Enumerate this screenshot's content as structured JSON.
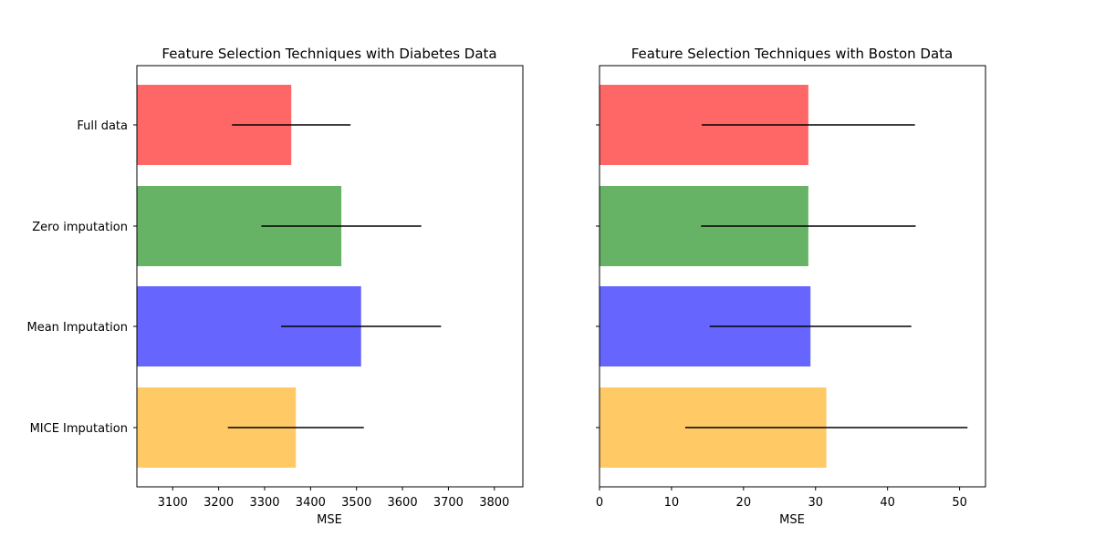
{
  "chart_data": [
    {
      "type": "bar",
      "orientation": "horizontal",
      "title": "Feature Selection Techniques with Diabetes Data",
      "xlabel": "MSE",
      "ylabel": "",
      "categories": [
        "Full data",
        "Zero imputation",
        "Mean Imputation",
        "MICE Imputation"
      ],
      "values": [
        3358,
        3467,
        3510,
        3368
      ],
      "error": [
        129,
        174,
        174,
        148
      ],
      "colors": [
        "#ff0000",
        "#008000",
        "#0000ff",
        "#ffa500"
      ],
      "bar_alpha": 0.6,
      "xlim": [
        3022,
        3862
      ],
      "xticks": [
        3100,
        3200,
        3300,
        3400,
        3500,
        3600,
        3700,
        3800
      ],
      "show_ytick_labels": true,
      "grid": false,
      "legend": "none"
    },
    {
      "type": "bar",
      "orientation": "horizontal",
      "title": "Feature Selection Techniques with Boston Data",
      "xlabel": "MSE",
      "ylabel": "",
      "categories": [
        "Full data",
        "Zero imputation",
        "Mean Imputation",
        "MICE Imputation"
      ],
      "values": [
        29.0,
        29.0,
        29.3,
        31.5
      ],
      "error": [
        14.8,
        14.9,
        14.0,
        19.6
      ],
      "colors": [
        "#ff0000",
        "#008000",
        "#0000ff",
        "#ffa500"
      ],
      "bar_alpha": 0.6,
      "xlim": [
        0,
        53.6
      ],
      "xticks": [
        0,
        10,
        20,
        30,
        40,
        50
      ],
      "show_ytick_labels": false,
      "grid": false,
      "legend": "none"
    }
  ]
}
